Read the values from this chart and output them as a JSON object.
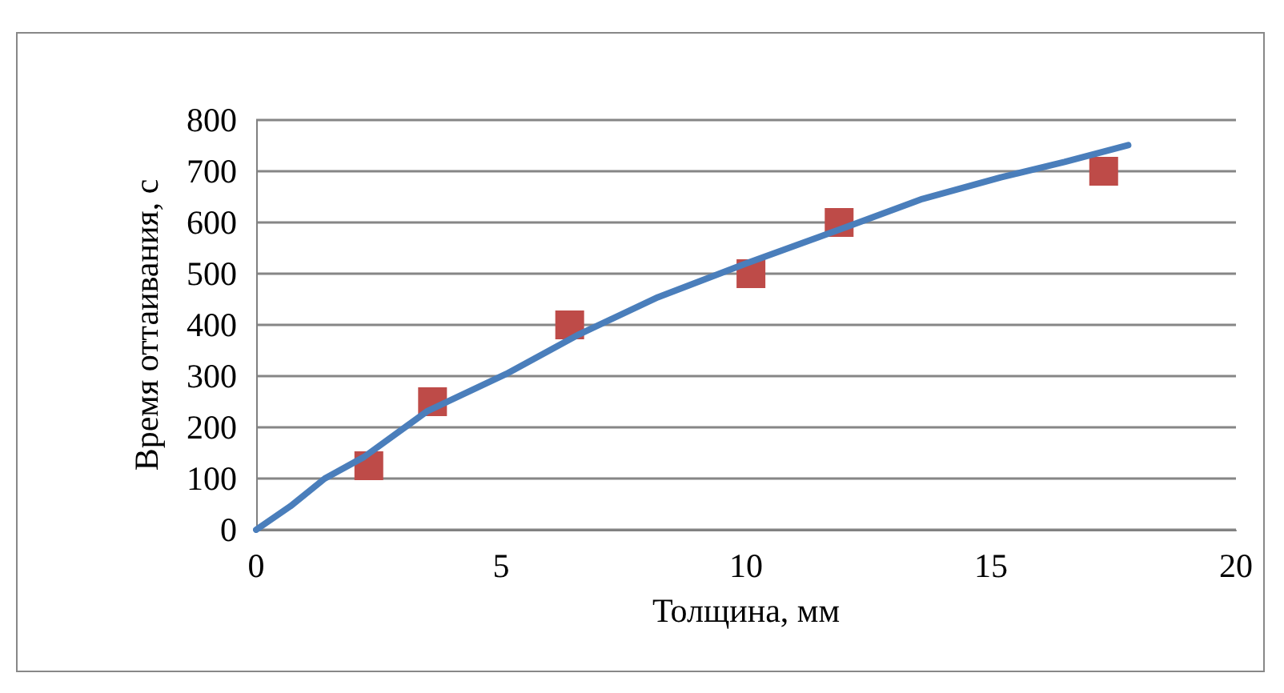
{
  "chart_data": {
    "type": "scatter",
    "xlabel": "Толщина, мм",
    "ylabel": "Время оттаивания, с",
    "series": [
      {
        "type": "line",
        "color": "#4a7ebb",
        "x": [
          0,
          0.7,
          1.4,
          2.2,
          3.5,
          5.1,
          6.6,
          8.2,
          10,
          11.9,
          13.6,
          15.2,
          16.5,
          17.8
        ],
        "values": [
          0,
          46,
          100,
          142,
          232,
          304,
          382,
          454,
          520,
          586,
          646,
          688,
          718,
          751
        ],
        "marker": "none",
        "line_style": "solid"
      },
      {
        "color": "#be4b48",
        "x": [
          2.3,
          3.6,
          6.4,
          10.1,
          11.9,
          17.3
        ],
        "values": [
          125,
          250,
          400,
          500,
          600,
          700
        ],
        "marker": "square"
      }
    ],
    "xlim": [
      0,
      20
    ],
    "xticks": [
      0,
      5,
      10,
      15,
      20
    ],
    "ylim": [
      0,
      800
    ],
    "yticks": [
      0,
      100,
      200,
      300,
      400,
      500,
      600,
      700,
      800
    ],
    "grid": "y"
  }
}
